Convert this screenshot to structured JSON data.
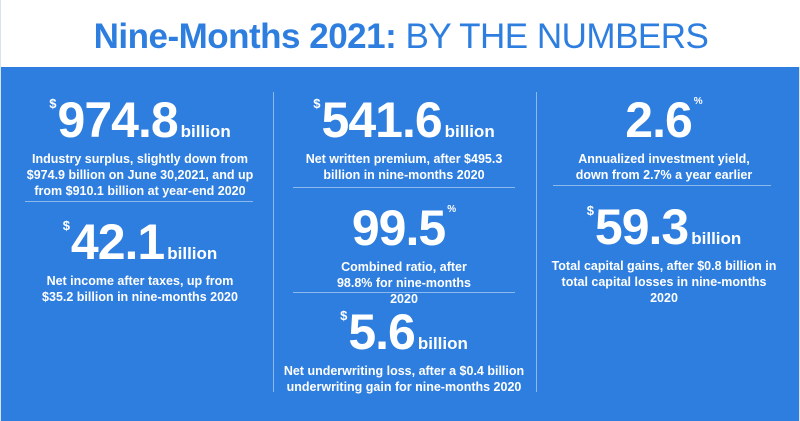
{
  "header": {
    "title_bold": "Nine-Months 2021:",
    "title_light": "BY THE NUMBERS"
  },
  "colors": {
    "background": "#2e7ee0",
    "header_bg": "#ffffff",
    "title": "#2e7ee0",
    "text": "#ffffff"
  },
  "stats": {
    "surplus": {
      "currency": "$",
      "value": "974.8",
      "unit": "billion",
      "description": "Industry surplus, slightly down from $974.9 billion on June 30,2021, and up from $910.1 billion at year-end 2020"
    },
    "net_income": {
      "currency": "$",
      "value": "42.1",
      "unit": "billion",
      "description": "Net income after taxes, up from $35.2 billion in nine-months 2020"
    },
    "premium": {
      "currency": "$",
      "value": "541.6",
      "unit": "billion",
      "description": "Net written premium, after $495.3 billion in nine-months 2020"
    },
    "combined_ratio": {
      "value": "99.5",
      "percent": "%",
      "description": "Combined ratio, after 98.8% for nine-months 2020"
    },
    "underwriting": {
      "currency": "$",
      "value": "5.6",
      "unit": "billion",
      "description": "Net underwriting loss, after a $0.4 billion underwriting gain for nine-months 2020"
    },
    "yield": {
      "value": "2.6",
      "percent": "%",
      "description": "Annualized investment yield, down from 2.7% a year earlier"
    },
    "capital_gains": {
      "currency": "$",
      "value": "59.3",
      "unit": "billion",
      "description": "Total capital gains, after $0.8 billion in total capital losses in nine-months 2020"
    }
  }
}
